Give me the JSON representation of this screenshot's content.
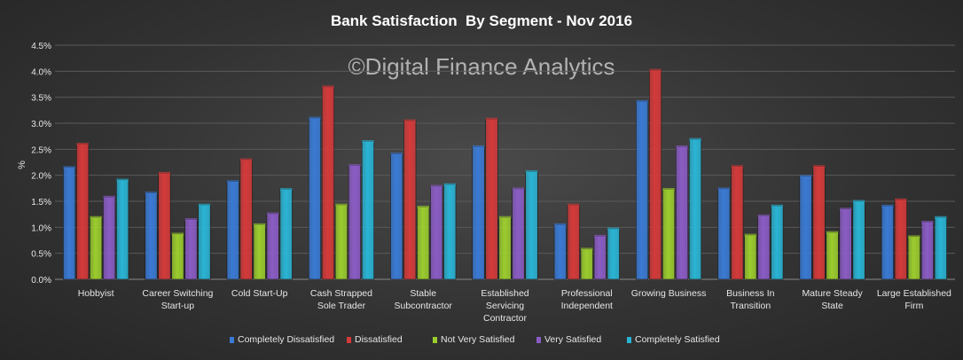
{
  "chart_data": {
    "type": "bar",
    "title": "Bank Satisfaction  By Segment - Nov 2016",
    "watermark": "©Digital Finance Analytics",
    "ylabel": "%",
    "xlabel": "",
    "ylim": [
      0,
      4.5
    ],
    "yticks": [
      "0.0%",
      "0.5%",
      "1.0%",
      "1.5%",
      "2.0%",
      "2.5%",
      "3.0%",
      "3.5%",
      "4.0%",
      "4.5%"
    ],
    "grid": true,
    "legend_position": "bottom",
    "categories": [
      [
        "Hobbyist"
      ],
      [
        "Career Switching",
        "Start-up"
      ],
      [
        "Cold Start-Up"
      ],
      [
        "Cash Strapped",
        "Sole Trader"
      ],
      [
        "Stable",
        "Subcontractor"
      ],
      [
        "Established",
        "Servicing",
        "Contractor"
      ],
      [
        "Professional",
        "Independent"
      ],
      [
        "Growing Business"
      ],
      [
        "Business In",
        "Transition"
      ],
      [
        "Mature Steady",
        "State"
      ],
      [
        "Large Established",
        "Firm"
      ]
    ],
    "series": [
      {
        "name": "Completely Dissatisfied",
        "color": "#3a7ad4",
        "values": [
          2.15,
          1.66,
          1.88,
          3.1,
          2.41,
          2.55,
          1.05,
          3.42,
          1.74,
          1.98,
          1.41
        ]
      },
      {
        "name": "Dissatisfied",
        "color": "#d43a3a",
        "values": [
          2.6,
          2.04,
          2.3,
          3.7,
          3.05,
          3.08,
          1.43,
          4.02,
          2.17,
          2.17,
          1.53
        ]
      },
      {
        "name": "Not Very Satisfied",
        "color": "#9bcc2e",
        "values": [
          1.19,
          0.87,
          1.05,
          1.43,
          1.39,
          1.19,
          0.58,
          1.73,
          0.85,
          0.9,
          0.82
        ]
      },
      {
        "name": "Very Satisfied",
        "color": "#8a5cc4",
        "values": [
          1.58,
          1.15,
          1.26,
          2.19,
          1.79,
          1.74,
          0.83,
          2.55,
          1.22,
          1.35,
          1.1
        ]
      },
      {
        "name": "Completely Satisfied",
        "color": "#2ab4d4",
        "values": [
          1.91,
          1.43,
          1.73,
          2.65,
          1.82,
          2.07,
          0.97,
          2.69,
          1.41,
          1.5,
          1.19
        ]
      }
    ]
  }
}
